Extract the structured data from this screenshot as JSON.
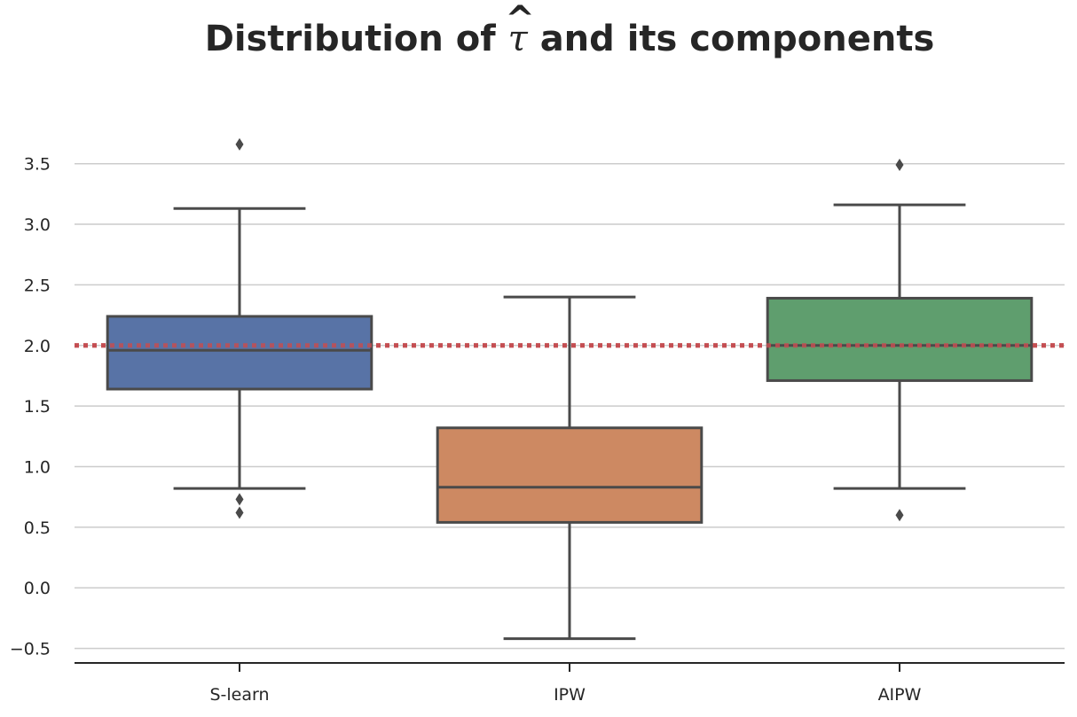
{
  "chart_data": {
    "type": "box",
    "title_prefix": "Distribution of ",
    "title_symbol": "τ",
    "title_hat": "^",
    "title_suffix": " and its components",
    "categories": [
      "S-learn",
      "IPW",
      "AIPW"
    ],
    "colors": [
      "#5873a6",
      "#cd8962",
      "#5f9e6e"
    ],
    "boxes": [
      {
        "name": "S-learn",
        "whisker_low": 0.82,
        "q1": 1.64,
        "median": 1.96,
        "q3": 2.24,
        "whisker_high": 3.13,
        "outliers": [
          3.66,
          0.73,
          0.62
        ]
      },
      {
        "name": "IPW",
        "whisker_low": -0.42,
        "q1": 0.54,
        "median": 0.83,
        "q3": 1.32,
        "whisker_high": 2.4,
        "outliers": []
      },
      {
        "name": "AIPW",
        "whisker_low": 0.82,
        "q1": 1.71,
        "median": 2.0,
        "q3": 2.39,
        "whisker_high": 3.16,
        "outliers": [
          3.49,
          0.6
        ]
      }
    ],
    "reference_line": {
      "value": 2.0,
      "style": "dotted",
      "color": "#c44e52"
    },
    "yticks": [
      -0.5,
      0.0,
      0.5,
      1.0,
      1.5,
      2.0,
      2.5,
      3.0,
      3.5
    ],
    "ytick_labels": [
      "−0.5",
      "0.0",
      "0.5",
      "1.0",
      "1.5",
      "2.0",
      "2.5",
      "3.0",
      "3.5"
    ],
    "ylim": [
      -0.62,
      3.9
    ],
    "grid": "horizontal",
    "xlabel": "",
    "ylabel": ""
  }
}
